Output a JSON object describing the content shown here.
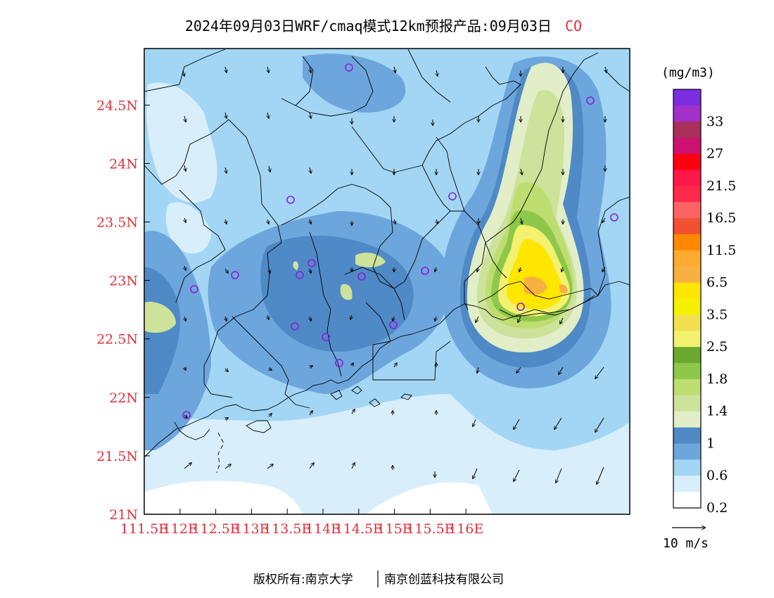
{
  "title": {
    "main": "2024年09月03日WRF/cmaq模式12km预报产品:09月03日",
    "species": "CO"
  },
  "colors": {
    "species": "#e0303c",
    "tick_labels": "#e0303c",
    "station_marker": "#8a1ed8",
    "boundary": "#000000"
  },
  "map": {
    "x_ticks": [
      "111.5E",
      "112E",
      "112.5E",
      "113E",
      "113.5E",
      "114E",
      "114.5E",
      "115E",
      "115.5E",
      "116E"
    ],
    "y_ticks": [
      "21N",
      "21.5N",
      "22N",
      "22.5N",
      "23N",
      "23.5N",
      "24N",
      "24.5N"
    ]
  },
  "colorbar": {
    "unit": "(mg/m3)",
    "labels": [
      "33",
      "27",
      "21.5",
      "16.5",
      "11.5",
      "6.5",
      "3.5",
      "2.5",
      "1.8",
      "1.4",
      "1",
      "0.6",
      "0.2"
    ],
    "colors_top_to_bottom": [
      "#7a2ee0",
      "#a030c8",
      "#a8305a",
      "#cc1270",
      "#ff0010",
      "#ff1848",
      "#ff2a4a",
      "#ff6464",
      "#f25030",
      "#ff8800",
      "#ffaa30",
      "#f8b040",
      "#ffe600",
      "#f5f000",
      "#f2e050",
      "#f2f270",
      "#6aa830",
      "#8ec84a",
      "#bedd70",
      "#cde29a",
      "#e2eec8",
      "#4f8ac6",
      "#6da6dc",
      "#a2d6f4",
      "#d8eefa",
      "#ffffff"
    ]
  },
  "wind_legend": {
    "label": "10 m/s"
  },
  "footer": {
    "left": "版权所有:南京大学",
    "right": "南京创蓝科技有限公司"
  }
}
